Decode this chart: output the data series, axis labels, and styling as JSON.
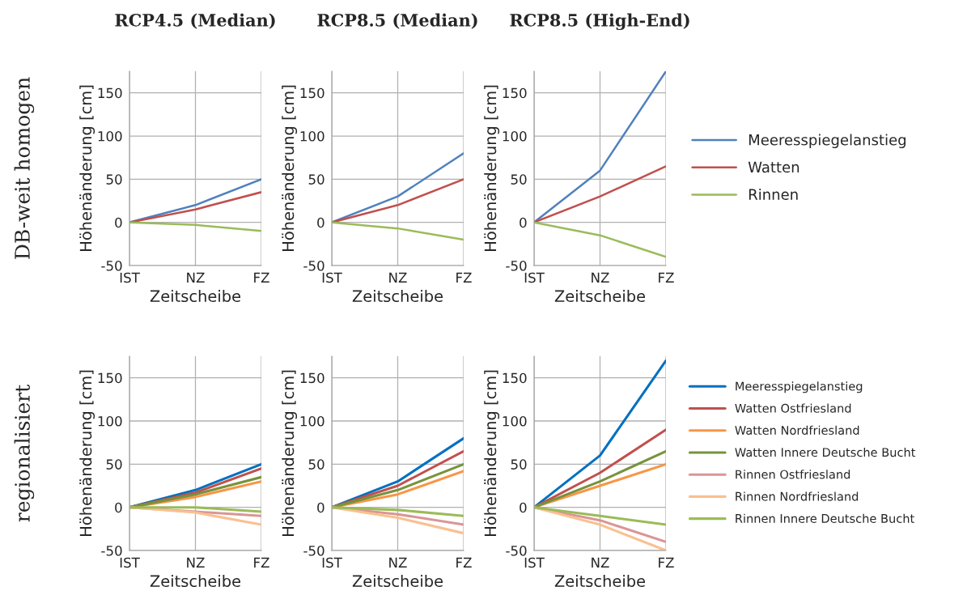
{
  "chart_data": [
    {
      "type": "line",
      "title": "RCP4.5 (Median)",
      "xlabel": "Zeitscheibe",
      "ylabel": "Höhenänderung [cm]",
      "categories": [
        "IST",
        "NZ",
        "FZ"
      ],
      "ylim": [
        -50,
        175
      ],
      "yticks": [
        -50,
        0,
        50,
        100,
        150
      ],
      "grid": true,
      "legend": false,
      "annotations": [
        "DB-weit homogen"
      ],
      "series": [
        {
          "color": "#4f81bd",
          "values": [
            0,
            20,
            50
          ]
        },
        {
          "color": "#c0504d",
          "values": [
            0,
            15,
            35
          ]
        },
        {
          "color": "#9bbb59",
          "values": [
            0,
            -3,
            -10
          ]
        }
      ]
    },
    {
      "type": "line",
      "title": "RCP8.5 (Median)",
      "xlabel": "Zeitscheibe",
      "ylabel": "Höhenänderung [cm]",
      "categories": [
        "IST",
        "NZ",
        "FZ"
      ],
      "ylim": [
        -50,
        175
      ],
      "yticks": [
        -50,
        0,
        50,
        100,
        150
      ],
      "grid": true,
      "legend": false,
      "series": [
        {
          "color": "#4f81bd",
          "values": [
            0,
            30,
            80
          ]
        },
        {
          "color": "#c0504d",
          "values": [
            0,
            20,
            50
          ]
        },
        {
          "color": "#9bbb59",
          "values": [
            0,
            -7,
            -20
          ]
        }
      ]
    },
    {
      "type": "line",
      "title": "RCP8.5 (High-End)",
      "xlabel": "Zeitscheibe",
      "ylabel": "Höhenänderung [cm]",
      "categories": [
        "IST",
        "NZ",
        "FZ"
      ],
      "ylim": [
        -50,
        175
      ],
      "yticks": [
        -50,
        0,
        50,
        100,
        150
      ],
      "grid": true,
      "legend": "right",
      "series": [
        {
          "name": "Meeresspiegelanstieg",
          "color": "#4f81bd",
          "values": [
            0,
            60,
            175
          ]
        },
        {
          "name": "Watten",
          "color": "#c0504d",
          "values": [
            0,
            30,
            65
          ]
        },
        {
          "name": "Rinnen",
          "color": "#9bbb59",
          "values": [
            0,
            -15,
            -40
          ]
        }
      ]
    },
    {
      "type": "line",
      "xlabel": "Zeitscheibe",
      "ylabel": "Höhenänderung [cm]",
      "categories": [
        "IST",
        "NZ",
        "FZ"
      ],
      "ylim": [
        -50,
        175
      ],
      "yticks": [
        -50,
        0,
        50,
        100,
        150
      ],
      "grid": true,
      "legend": false,
      "annotations": [
        "regionalisiert"
      ],
      "series": [
        {
          "color": "#0070c0",
          "values": [
            0,
            20,
            50
          ]
        },
        {
          "color": "#c0504d",
          "values": [
            0,
            17,
            45
          ]
        },
        {
          "color": "#f79646",
          "values": [
            0,
            12,
            30
          ]
        },
        {
          "color": "#77933c",
          "values": [
            0,
            15,
            35
          ]
        },
        {
          "color": "#d99694",
          "values": [
            0,
            -5,
            -10
          ]
        },
        {
          "color": "#fac090",
          "values": [
            0,
            -6,
            -20
          ]
        },
        {
          "color": "#9bbb59",
          "values": [
            0,
            0,
            -5
          ]
        }
      ]
    },
    {
      "type": "line",
      "xlabel": "Zeitscheibe",
      "ylabel": "Höhenänderung [cm]",
      "categories": [
        "IST",
        "NZ",
        "FZ"
      ],
      "ylim": [
        -50,
        175
      ],
      "yticks": [
        -50,
        0,
        50,
        100,
        150
      ],
      "grid": true,
      "legend": false,
      "series": [
        {
          "color": "#0070c0",
          "values": [
            0,
            30,
            80
          ]
        },
        {
          "color": "#c0504d",
          "values": [
            0,
            25,
            65
          ]
        },
        {
          "color": "#f79646",
          "values": [
            0,
            15,
            42
          ]
        },
        {
          "color": "#77933c",
          "values": [
            0,
            20,
            50
          ]
        },
        {
          "color": "#d99694",
          "values": [
            0,
            -8,
            -20
          ]
        },
        {
          "color": "#fac090",
          "values": [
            0,
            -12,
            -30
          ]
        },
        {
          "color": "#9bbb59",
          "values": [
            0,
            -3,
            -10
          ]
        }
      ]
    },
    {
      "type": "line",
      "xlabel": "Zeitscheibe",
      "ylabel": "Höhenänderung [cm]",
      "categories": [
        "IST",
        "NZ",
        "FZ"
      ],
      "ylim": [
        -50,
        175
      ],
      "yticks": [
        -50,
        0,
        50,
        100,
        150
      ],
      "grid": true,
      "legend": "right",
      "series": [
        {
          "name": "Meeresspiegelanstieg",
          "color": "#0070c0",
          "values": [
            0,
            60,
            170
          ]
        },
        {
          "name": "Watten Ostfriesland",
          "color": "#c0504d",
          "values": [
            0,
            40,
            90
          ]
        },
        {
          "name": "Watten Nordfriesland",
          "color": "#f79646",
          "values": [
            0,
            25,
            50
          ]
        },
        {
          "name": "Watten Innere Deutsche Bucht",
          "color": "#77933c",
          "values": [
            0,
            30,
            65
          ]
        },
        {
          "name": "Rinnen Ostfriesland",
          "color": "#d99694",
          "values": [
            0,
            -15,
            -40
          ]
        },
        {
          "name": "Rinnen Nordfriesland",
          "color": "#fac090",
          "values": [
            0,
            -20,
            -50
          ]
        },
        {
          "name": "Rinnen Innere Deutsche Bucht",
          "color": "#9bbb59",
          "values": [
            0,
            -10,
            -20
          ]
        }
      ]
    }
  ]
}
